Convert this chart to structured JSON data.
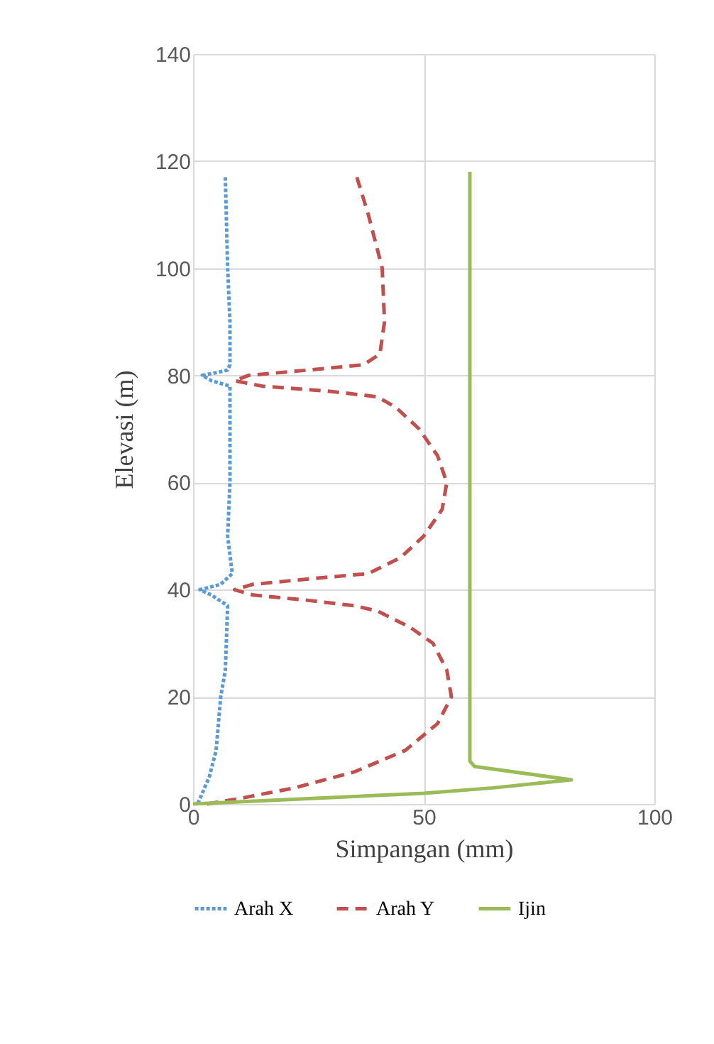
{
  "chart_data": {
    "type": "line",
    "xlabel": "Simpangan (mm)",
    "ylabel": "Elevasi (m)",
    "xlim": [
      0,
      100
    ],
    "xticks": [
      0,
      50,
      100
    ],
    "ylim": [
      0,
      140
    ],
    "yticks": [
      0,
      20,
      40,
      60,
      80,
      100,
      120,
      140
    ],
    "grid": true,
    "legend": "bottom",
    "series": [
      {
        "name": "Arah X",
        "color": "#5b9bd5",
        "line_style": "dotted",
        "x": [
          7,
          7.5,
          8,
          8,
          7.5,
          5,
          2,
          4,
          8,
          8,
          7.5,
          8.5,
          6,
          1.5,
          4,
          7.5,
          7,
          6,
          5,
          3.5,
          2,
          1
        ],
        "values": [
          117,
          100,
          90,
          82,
          81,
          80.5,
          80,
          79,
          78,
          60,
          50,
          43,
          41,
          40,
          39,
          37,
          25,
          20,
          10,
          5,
          2,
          0
        ]
      },
      {
        "name": "Arah Y",
        "color": "#c0504d",
        "line_style": "dashed",
        "x": [
          35.5,
          38,
          41,
          41.5,
          40.5,
          37,
          25,
          12,
          9,
          15,
          30,
          40,
          44,
          49,
          53,
          55,
          54,
          50,
          45,
          38,
          25,
          13,
          9,
          13,
          25,
          35,
          40,
          47,
          52,
          55,
          56,
          53,
          46,
          35,
          22,
          10,
          3
        ],
        "values": [
          117,
          110,
          100,
          90,
          84,
          82,
          81,
          80,
          79,
          78,
          77,
          76,
          74,
          70,
          65,
          60,
          55,
          50,
          46,
          43,
          42,
          41,
          40,
          39,
          38,
          37,
          36,
          33,
          30,
          25,
          20,
          15,
          10,
          6,
          3,
          1,
          0
        ]
      },
      {
        "name": "Ijin",
        "color": "#9bbb59",
        "line_style": "solid",
        "x": [
          60,
          60,
          60,
          61,
          82,
          65,
          50,
          25,
          0
        ],
        "values": [
          118,
          10,
          8,
          7,
          4.5,
          3,
          2,
          1,
          0
        ]
      }
    ]
  }
}
